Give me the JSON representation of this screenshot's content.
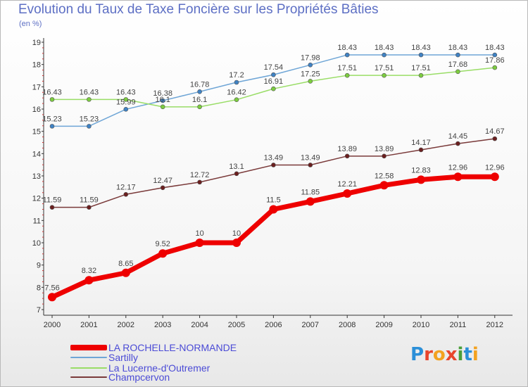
{
  "title": "Evolution du Taux de Taxe Foncière sur les Propriétés Bâties",
  "subtitle": "(en %)",
  "logo": {
    "text": "Proxiti",
    "letter_colors": [
      "#2b8fd8",
      "#e8452c",
      "#f3a21f",
      "#e8452c",
      "#4a9f3a",
      "#2b8fd8",
      "#f3a21f"
    ]
  },
  "chart_data": {
    "type": "line",
    "title": "Evolution du Taux de Taxe Foncière sur les Propriétés Bâties",
    "ylabel": "(en %)",
    "x": [
      "2000",
      "2001",
      "2002",
      "2003",
      "2004",
      "2005",
      "2006",
      "2007",
      "2008",
      "2009",
      "2010",
      "2011",
      "2012"
    ],
    "ylim": [
      7,
      19
    ],
    "yticks": [
      "7",
      "8",
      "9",
      "10",
      "11",
      "12",
      "13",
      "14",
      "15",
      "16",
      "17",
      "18",
      "19"
    ],
    "grid": false,
    "legend_position": "bottom",
    "series": [
      {
        "name": "LA ROCHELLE-NORMANDE",
        "color": "#ee0000",
        "values": [
          7.56,
          8.32,
          8.65,
          9.52,
          10,
          10,
          11.5,
          11.85,
          12.21,
          12.58,
          12.83,
          12.96,
          12.96
        ],
        "labels": [
          "7.56",
          "8.32",
          "8.65",
          "9.52",
          "10",
          "10",
          "11.5",
          "11.85",
          "12.21",
          "12.58",
          "12.83",
          "12.96",
          "12.96"
        ]
      },
      {
        "name": "Sartilly",
        "color": "#6ea5d6",
        "marker_color": "#3f82c4",
        "values": [
          15.23,
          15.23,
          15.99,
          16.38,
          16.78,
          17.2,
          17.54,
          17.98,
          18.43,
          18.43,
          18.43,
          18.43,
          18.43
        ],
        "labels": [
          "15.23",
          "15.23",
          "15.99",
          "16.38",
          "16.78",
          "17.2",
          "17.54",
          "17.98",
          "18.43",
          "18.43",
          "18.43",
          "18.43",
          "18.43"
        ]
      },
      {
        "name": "La Lucerne-d'Outremer",
        "color": "#99dd66",
        "marker_color": "#7ccc3f",
        "values": [
          16.43,
          16.43,
          16.43,
          16.1,
          16.1,
          16.42,
          16.91,
          17.25,
          17.51,
          17.51,
          17.51,
          17.68,
          17.86
        ],
        "labels": [
          "16.43",
          "16.43",
          "16.43",
          "16.1",
          "16.1",
          "16.42",
          "16.91",
          "17.25",
          "17.51",
          "17.51",
          "17.51",
          "17.68",
          "17.86"
        ]
      },
      {
        "name": "Champcervon",
        "color": "#7a3a3a",
        "marker_color": "#6b1f1f",
        "values": [
          11.59,
          11.59,
          12.17,
          12.47,
          12.72,
          13.1,
          13.49,
          13.49,
          13.89,
          13.89,
          14.17,
          14.45,
          14.67
        ],
        "labels": [
          "11.59",
          "11.59",
          "12.17",
          "12.47",
          "12.72",
          "13.1",
          "13.49",
          "13.49",
          "13.89",
          "13.89",
          "14.17",
          "14.45",
          "14.67"
        ]
      }
    ]
  }
}
